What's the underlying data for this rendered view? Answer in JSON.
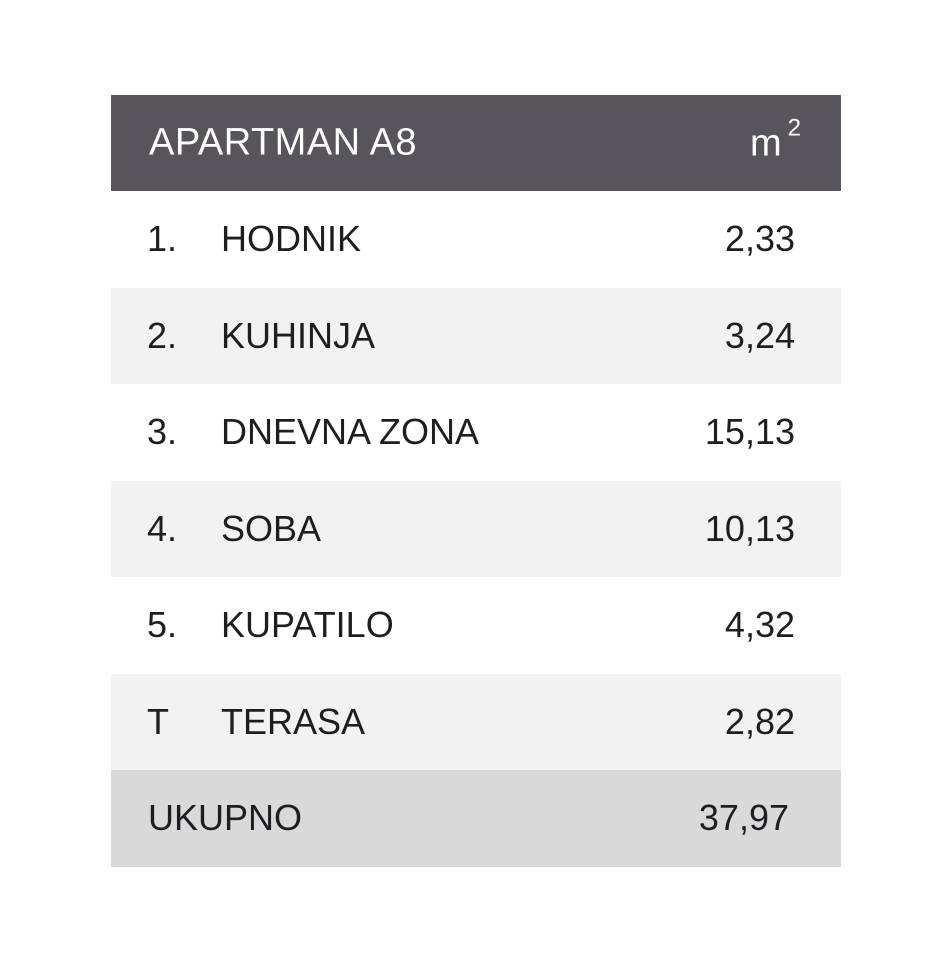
{
  "header": {
    "title": "APARTMAN A8",
    "unit": "m",
    "unit_sup": "2"
  },
  "rows": [
    {
      "num": "1.",
      "name": "HODNIK",
      "value": "2,33"
    },
    {
      "num": "2.",
      "name": "KUHINJA",
      "value": "3,24"
    },
    {
      "num": "3.",
      "name": "DNEVNA ZONA",
      "value": "15,13"
    },
    {
      "num": "4.",
      "name": "SOBA",
      "value": "10,13"
    },
    {
      "num": "5.",
      "name": "KUPATILO",
      "value": "4,32"
    },
    {
      "num": "T",
      "name": "TERASA",
      "value": "2,82"
    }
  ],
  "total": {
    "label": "UKUPNO",
    "value": "37,97"
  },
  "colors": {
    "header_bg": "#57555b",
    "row_alt_bg": "#f2f2f2",
    "total_bg": "#d9d9d9"
  }
}
